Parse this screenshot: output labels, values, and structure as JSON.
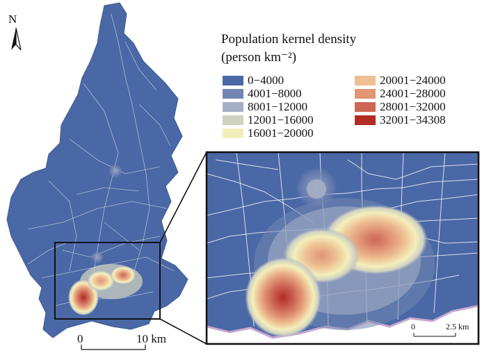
{
  "north_arrow": {
    "letter": "N",
    "icon": "north-arrow-icon"
  },
  "legend": {
    "title": "Population kernel density",
    "unit": "(person km⁻²)",
    "classes": [
      {
        "label": "0−4000",
        "color": "#4a68a5"
      },
      {
        "label": "4001−8000",
        "color": "#7386b3"
      },
      {
        "label": "8001−12000",
        "color": "#a4aec5"
      },
      {
        "label": "12001−16000",
        "color": "#cfd1c1"
      },
      {
        "label": "16001−20000",
        "color": "#f3efbb"
      },
      {
        "label": "20001−24000",
        "color": "#eebf93"
      },
      {
        "label": "24001−28000",
        "color": "#e09575"
      },
      {
        "label": "28001−32000",
        "color": "#cd6655"
      },
      {
        "label": "32001−34308",
        "color": "#b22c24"
      }
    ]
  },
  "scale_bar_main": {
    "start": "0",
    "end": "10 km"
  },
  "scale_bar_inset": {
    "start": "0",
    "end": "2.5 km"
  },
  "colors": {
    "land": "#4a68a5",
    "roads": "#ffffff",
    "coast": "#c8a8cf",
    "frame": "#111111"
  }
}
